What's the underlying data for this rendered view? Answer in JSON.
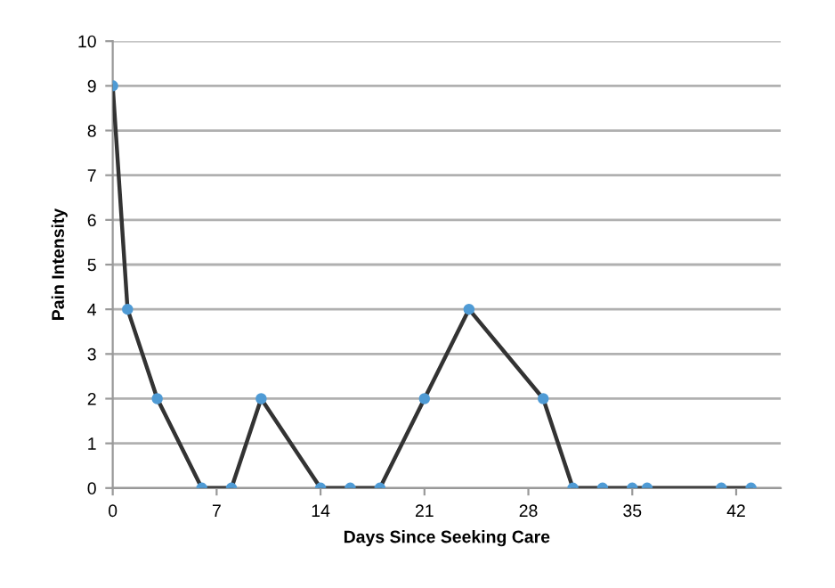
{
  "chart_data": {
    "type": "line",
    "xlabel": "Days Since Seeking Care",
    "ylabel": "Pain Intensity",
    "x": [
      0,
      1,
      3,
      6,
      8,
      10,
      14,
      16,
      18,
      21,
      24,
      29,
      31,
      33,
      35,
      36,
      41,
      43
    ],
    "series": [
      {
        "color": "#333333",
        "values": [
          9,
          4,
          2,
          0,
          0,
          2,
          0,
          0,
          0,
          2,
          4,
          2,
          0,
          0,
          0,
          0,
          0,
          0
        ]
      }
    ],
    "xlim": [
      0,
      45
    ],
    "xticks": [
      0,
      7,
      14,
      21,
      28,
      35,
      42
    ],
    "ylim": [
      0,
      10
    ],
    "yticks": [
      0,
      1,
      2,
      3,
      4,
      5,
      6,
      7,
      8,
      9,
      10
    ],
    "grid": "y",
    "marker": "circle",
    "line_style": "solid"
  }
}
